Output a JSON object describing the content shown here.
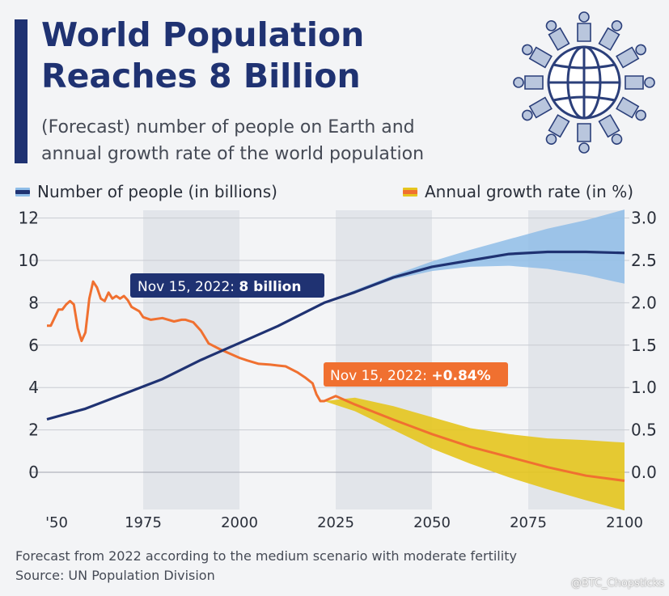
{
  "header": {
    "title_line1": "World Population",
    "title_line2": "Reaches 8 Billion",
    "subtitle_line1": "(Forecast) number of people on Earth and",
    "subtitle_line2": "annual growth rate of the world population"
  },
  "legend": {
    "population": "Number of people (in billions)",
    "growth": "Annual growth rate (in %)"
  },
  "annotations": {
    "population": "Nov 15, 2022: ",
    "population_bold": "8 billion",
    "growth": "Nov 15, 2022: ",
    "growth_bold": "+0.84%"
  },
  "footer": {
    "note": "Forecast from 2022 according to the medium scenario with moderate fertility",
    "source": "Source: UN Population Division"
  },
  "watermark": "@BTC_Chopsticks",
  "icons": [
    "globe-people-icon"
  ],
  "colors": {
    "navy": "#1f3272",
    "orange": "#f07030",
    "band_blue": "#8fbde8",
    "band_yellow": "#e6c51e",
    "shade": "#e2e5ea"
  },
  "chart_data": {
    "type": "line",
    "x_ticks": [
      "'50",
      "1975",
      "2000",
      "2025",
      "2050",
      "2075",
      "2100"
    ],
    "x_tick_values": [
      1950,
      1975,
      2000,
      2025,
      2050,
      2075,
      2100
    ],
    "xlim": [
      1950,
      2100
    ],
    "y_left_ticks": [
      "12",
      "10",
      "8",
      "6",
      "4",
      "2",
      "0"
    ],
    "y_left_tick_values": [
      12,
      10,
      8,
      6,
      4,
      2,
      0
    ],
    "y_right_ticks": [
      "3.0",
      "2.5",
      "2.0",
      "1.5",
      "1.0",
      "0.5",
      "0.0"
    ],
    "y_right_tick_values": [
      3.0,
      2.5,
      2.0,
      1.5,
      1.0,
      0.5,
      0.0
    ],
    "ylim_left": [
      -1.2,
      12
    ],
    "ylim_right": [
      -0.3,
      3.0
    ],
    "shaded_periods": [
      [
        1975,
        2000
      ],
      [
        2025,
        2050
      ],
      [
        2075,
        2100
      ]
    ],
    "grid": true,
    "legend_position": "top",
    "series": [
      {
        "name": "Number of people (in billions)",
        "axis": "left",
        "x": [
          1950,
          1960,
          1970,
          1980,
          1990,
          2000,
          2010,
          2022,
          2030,
          2040,
          2050,
          2060,
          2070,
          2080,
          2086,
          2090,
          2100
        ],
        "values": [
          2.5,
          3.0,
          3.7,
          4.4,
          5.3,
          6.1,
          6.9,
          8.0,
          8.5,
          9.2,
          9.7,
          10.0,
          10.3,
          10.4,
          10.4,
          10.4,
          10.35
        ]
      },
      {
        "name": "Number of people upper bound",
        "axis": "left",
        "x": [
          2022,
          2030,
          2040,
          2050,
          2060,
          2070,
          2080,
          2090,
          2100
        ],
        "values": [
          8.0,
          8.6,
          9.3,
          9.95,
          10.5,
          11.0,
          11.5,
          11.9,
          12.4
        ]
      },
      {
        "name": "Number of people lower bound",
        "axis": "left",
        "x": [
          2022,
          2030,
          2040,
          2050,
          2060,
          2070,
          2080,
          2090,
          2100
        ],
        "values": [
          8.0,
          8.45,
          9.1,
          9.5,
          9.7,
          9.75,
          9.6,
          9.3,
          8.9
        ]
      },
      {
        "name": "Annual growth rate (in %)",
        "axis": "right",
        "x": [
          1950,
          1951,
          1953,
          1954,
          1955,
          1956,
          1957,
          1958,
          1959,
          1960,
          1961,
          1962,
          1963,
          1964,
          1965,
          1966,
          1967,
          1968,
          1969,
          1970,
          1971,
          1972,
          1974,
          1975,
          1977,
          1980,
          1983,
          1985,
          1986,
          1988,
          1990,
          1992,
          1995,
          2000,
          2002,
          2005,
          2008,
          2010,
          2012,
          2015,
          2017,
          2019,
          2020,
          2021,
          2022,
          2025,
          2030,
          2040,
          2050,
          2060,
          2070,
          2080,
          2090,
          2100
        ],
        "values": [
          1.73,
          1.73,
          1.92,
          1.92,
          1.98,
          2.02,
          1.98,
          1.7,
          1.55,
          1.65,
          2.05,
          2.25,
          2.18,
          2.05,
          2.02,
          2.12,
          2.05,
          2.08,
          2.05,
          2.08,
          2.03,
          1.95,
          1.9,
          1.83,
          1.8,
          1.82,
          1.78,
          1.8,
          1.8,
          1.77,
          1.67,
          1.52,
          1.45,
          1.35,
          1.32,
          1.28,
          1.27,
          1.26,
          1.25,
          1.18,
          1.12,
          1.05,
          0.92,
          0.84,
          0.84,
          0.9,
          0.8,
          0.62,
          0.45,
          0.3,
          0.18,
          0.06,
          -0.04,
          -0.1
        ]
      },
      {
        "name": "Annual growth rate upper bound",
        "axis": "right",
        "x": [
          2022,
          2030,
          2040,
          2050,
          2060,
          2070,
          2080,
          2090,
          2100
        ],
        "values": [
          0.84,
          0.88,
          0.78,
          0.65,
          0.52,
          0.45,
          0.4,
          0.38,
          0.35
        ]
      },
      {
        "name": "Annual growth rate lower bound",
        "axis": "right",
        "x": [
          2022,
          2030,
          2040,
          2050,
          2060,
          2070,
          2080,
          2090,
          2100
        ],
        "values": [
          0.84,
          0.72,
          0.5,
          0.28,
          0.1,
          -0.06,
          -0.2,
          -0.33,
          -0.45
        ]
      }
    ],
    "annotations": [
      {
        "x": 2022,
        "axis": "left",
        "value": 8.0,
        "text": "Nov 15, 2022: 8 billion"
      },
      {
        "x": 2022,
        "axis": "right",
        "value": 0.84,
        "text": "Nov 15, 2022: +0.84%"
      }
    ]
  }
}
